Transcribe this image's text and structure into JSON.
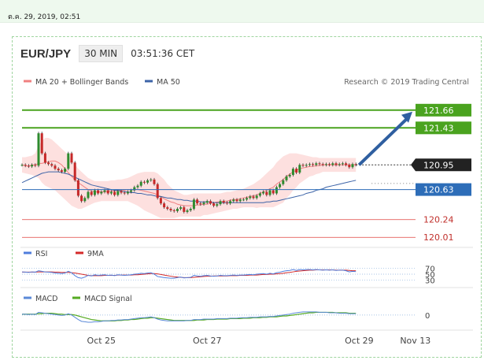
{
  "timestamp": "ต.ค. 29, 2019, 02:51",
  "header": {
    "symbol": "EUR/JPY",
    "timeframe": "30 MIN",
    "clock": "03:51:36 CET"
  },
  "colors": {
    "green_level": "#4aa31f",
    "red_level": "#e0423e",
    "blue_level": "#2d6db8",
    "ma20": "#f08080",
    "ma50": "#3d64a8",
    "bands": "#fde0df",
    "candle_up": "#2e8b2e",
    "candle_down": "#c62828",
    "arrow": "#2f5fa0",
    "rsi": "#4f7ddc",
    "rsi_ma": "#d42a2a",
    "macd": "#5b8ad8",
    "macd_signal": "#55aa22"
  },
  "chart_data": [
    {
      "type": "candlestick",
      "legend": [
        {
          "name": "MA 20 + Bollinger Bands",
          "color": "#f08080"
        },
        {
          "name": "MA 50",
          "color": "#3d64a8"
        }
      ],
      "credit": "Research © 2019 Trading Central",
      "ylim": [
        119.9,
        121.75
      ],
      "x_ticks": [
        {
          "label": "Oct 25",
          "i": 24
        },
        {
          "label": "Oct 27",
          "i": 56
        },
        {
          "label": "Oct 29",
          "i": 102
        },
        {
          "label": "Nov 13",
          "i": 119
        }
      ],
      "last_price": 120.95,
      "levels": [
        {
          "value": 121.66,
          "label": "121.66",
          "style": "resistance"
        },
        {
          "value": 121.43,
          "label": "121.43",
          "style": "resistance"
        },
        {
          "value": 120.95,
          "label": "120.95",
          "style": "last"
        },
        {
          "value": 120.63,
          "label": "120.63",
          "style": "pivot"
        },
        {
          "value": 120.24,
          "label": "120.24",
          "style": "support"
        },
        {
          "value": 120.01,
          "label": "120.01",
          "style": "support"
        }
      ],
      "forecast_arrow": {
        "from": 120.95,
        "to": 121.66
      },
      "close": [
        120.95,
        120.94,
        120.93,
        120.95,
        120.94,
        121.36,
        121.1,
        120.98,
        120.96,
        120.94,
        120.9,
        120.88,
        120.86,
        120.9,
        121.1,
        120.98,
        120.75,
        120.55,
        120.48,
        120.52,
        120.6,
        120.56,
        120.62,
        120.58,
        120.6,
        120.62,
        120.58,
        120.6,
        120.56,
        120.61,
        120.59,
        120.58,
        120.6,
        120.62,
        120.66,
        120.68,
        120.73,
        120.72,
        120.75,
        120.76,
        120.7,
        120.52,
        120.45,
        120.4,
        120.38,
        120.36,
        120.35,
        120.38,
        120.4,
        120.34,
        120.36,
        120.38,
        120.5,
        120.45,
        120.44,
        120.46,
        120.48,
        120.45,
        120.42,
        120.44,
        120.48,
        120.46,
        120.45,
        120.48,
        120.5,
        120.48,
        120.5,
        120.5,
        120.52,
        120.54,
        120.52,
        120.55,
        120.58,
        120.6,
        120.56,
        120.62,
        120.58,
        120.66,
        120.7,
        120.75,
        120.8,
        120.82,
        120.9,
        120.85,
        120.95,
        120.94,
        120.95,
        120.96,
        120.95,
        120.97,
        120.96,
        120.95,
        120.96,
        120.95,
        120.97,
        120.95,
        120.96,
        120.97,
        120.95,
        120.92,
        120.96,
        120.95
      ],
      "ma20": [
        120.95,
        120.94,
        120.93,
        120.95,
        120.95,
        120.97,
        120.97,
        120.98,
        120.99,
        121.0,
        121.0,
        120.98,
        120.95,
        120.9,
        120.85,
        120.8,
        120.76,
        120.72,
        120.69,
        120.66,
        120.63,
        120.61,
        120.6,
        120.6,
        120.6,
        120.6,
        120.61,
        120.61,
        120.61,
        120.62,
        120.62,
        120.62,
        120.63,
        120.63,
        120.63,
        120.63,
        120.62,
        120.61,
        120.6,
        120.59,
        120.58,
        120.56,
        120.54,
        120.51,
        120.49,
        120.47,
        120.46,
        120.44,
        120.43,
        120.42,
        120.42,
        120.42,
        120.42,
        120.43,
        120.43,
        120.44,
        120.44,
        120.45,
        120.46,
        120.47,
        120.47,
        120.48,
        120.48,
        120.49,
        120.5,
        120.5,
        120.51,
        120.52,
        120.53,
        120.54,
        120.55,
        120.56,
        120.58,
        120.6,
        120.62,
        120.64,
        120.66,
        120.7,
        120.73,
        120.76,
        120.8,
        120.83,
        120.86,
        120.88,
        120.9,
        120.91,
        120.92,
        120.93,
        120.93,
        120.94,
        120.94,
        120.95,
        120.95,
        120.95,
        120.95,
        120.95,
        120.95,
        120.95,
        120.95,
        120.95,
        120.95,
        120.95
      ],
      "bb_upper": [
        121.05,
        121.05,
        121.06,
        121.07,
        121.1,
        121.2,
        121.26,
        121.3,
        121.3,
        121.28,
        121.24,
        121.2,
        121.16,
        121.12,
        121.08,
        121.02,
        120.96,
        120.9,
        120.86,
        120.82,
        120.78,
        120.76,
        120.74,
        120.74,
        120.74,
        120.74,
        120.74,
        120.75,
        120.75,
        120.76,
        120.76,
        120.77,
        120.78,
        120.8,
        120.82,
        120.84,
        120.85,
        120.86,
        120.86,
        120.86,
        120.86,
        120.84,
        120.8,
        120.76,
        120.7,
        120.66,
        120.62,
        120.6,
        120.58,
        120.56,
        120.56,
        120.57,
        120.58,
        120.58,
        120.58,
        120.58,
        120.58,
        120.58,
        120.58,
        120.58,
        120.58,
        120.59,
        120.6,
        120.6,
        120.61,
        120.62,
        120.63,
        120.64,
        120.66,
        120.68,
        120.7,
        120.73,
        120.76,
        120.8,
        120.84,
        120.88,
        120.92,
        120.98,
        121.02,
        121.06,
        121.08,
        121.1,
        121.1,
        121.1,
        121.09,
        121.08,
        121.07,
        121.06,
        121.05,
        121.05,
        121.04,
        121.04,
        121.04,
        121.04,
        121.04,
        121.04,
        121.04,
        121.04,
        121.04,
        121.04,
        121.04,
        121.04
      ],
      "bb_lower": [
        120.85,
        120.84,
        120.83,
        120.82,
        120.8,
        120.78,
        120.72,
        120.68,
        120.66,
        120.64,
        120.62,
        120.58,
        120.54,
        120.5,
        120.46,
        120.42,
        120.4,
        120.38,
        120.38,
        120.4,
        120.42,
        120.44,
        120.46,
        120.47,
        120.48,
        120.48,
        120.48,
        120.48,
        120.48,
        120.48,
        120.48,
        120.48,
        120.48,
        120.46,
        120.44,
        120.42,
        120.39,
        120.36,
        120.34,
        120.32,
        120.3,
        120.28,
        120.26,
        120.26,
        120.26,
        120.26,
        120.26,
        120.27,
        120.28,
        120.28,
        120.28,
        120.28,
        120.28,
        120.28,
        120.28,
        120.3,
        120.3,
        120.31,
        120.32,
        120.33,
        120.34,
        120.35,
        120.36,
        120.37,
        120.38,
        120.38,
        120.39,
        120.4,
        120.4,
        120.4,
        120.4,
        120.39,
        120.4,
        120.4,
        120.4,
        120.4,
        120.4,
        120.42,
        120.44,
        120.46,
        120.52,
        120.56,
        120.62,
        120.66,
        120.71,
        120.74,
        120.77,
        120.8,
        120.81,
        120.83,
        120.84,
        120.86,
        120.86,
        120.86,
        120.86,
        120.86,
        120.86,
        120.86,
        120.86,
        120.86,
        120.86,
        120.86
      ],
      "ma50": [
        120.72,
        120.74,
        120.76,
        120.78,
        120.8,
        120.82,
        120.84,
        120.85,
        120.86,
        120.86,
        120.86,
        120.86,
        120.85,
        120.84,
        120.83,
        120.81,
        120.79,
        120.77,
        120.75,
        120.73,
        120.71,
        120.69,
        120.68,
        120.67,
        120.66,
        120.65,
        120.64,
        120.63,
        120.62,
        120.62,
        120.61,
        120.6,
        120.6,
        120.59,
        120.59,
        120.58,
        120.58,
        120.57,
        120.56,
        120.56,
        120.55,
        120.54,
        120.54,
        120.53,
        120.52,
        120.52,
        120.51,
        120.5,
        120.5,
        120.49,
        120.49,
        120.48,
        120.48,
        120.48,
        120.47,
        120.47,
        120.47,
        120.47,
        120.46,
        120.46,
        120.46,
        120.46,
        120.46,
        120.46,
        120.46,
        120.46,
        120.46,
        120.46,
        120.46,
        120.46,
        120.46,
        120.46,
        120.46,
        120.46,
        120.47,
        120.47,
        120.48,
        120.48,
        120.49,
        120.5,
        120.51,
        120.52,
        120.53,
        120.54,
        120.55,
        120.56,
        120.58,
        120.59,
        120.6,
        120.62,
        120.63,
        120.64,
        120.66,
        120.67,
        120.68,
        120.69,
        120.7,
        120.71,
        120.72,
        120.73,
        120.74,
        120.75
      ]
    },
    {
      "type": "line",
      "legend": [
        {
          "name": "RSI",
          "color": "#4f7ddc"
        },
        {
          "name": "9MA",
          "color": "#d42a2a"
        }
      ],
      "y_ticks": [
        "70",
        "50",
        "30"
      ],
      "ylim": [
        20,
        80
      ],
      "rsi": [
        58,
        57,
        56,
        58,
        57,
        62,
        60,
        58,
        57,
        56,
        54,
        53,
        52,
        54,
        60,
        55,
        45,
        38,
        36,
        40,
        46,
        44,
        48,
        46,
        47,
        48,
        46,
        47,
        45,
        48,
        47,
        46,
        47,
        48,
        50,
        51,
        53,
        52,
        54,
        55,
        50,
        42,
        40,
        38,
        37,
        36,
        36,
        38,
        40,
        37,
        38,
        39,
        46,
        44,
        43,
        45,
        46,
        44,
        43,
        44,
        46,
        45,
        45,
        46,
        47,
        46,
        47,
        47,
        48,
        49,
        48,
        50,
        51,
        52,
        50,
        53,
        51,
        55,
        57,
        60,
        62,
        63,
        66,
        63,
        66,
        65,
        66,
        66,
        65,
        66,
        65,
        64,
        65,
        64,
        65,
        63,
        64,
        64,
        62,
        58,
        60,
        59
      ],
      "rsi_ma": [
        57,
        57,
        57,
        57,
        57,
        58,
        58,
        58,
        58,
        58,
        57,
        57,
        56,
        56,
        56,
        55,
        54,
        52,
        50,
        48,
        46,
        45,
        45,
        45,
        45,
        46,
        46,
        46,
        46,
        47,
        47,
        47,
        47,
        47,
        48,
        48,
        49,
        50,
        51,
        52,
        52,
        51,
        49,
        47,
        45,
        43,
        41,
        40,
        39,
        38,
        38,
        38,
        39,
        40,
        41,
        42,
        43,
        43,
        44,
        44,
        44,
        44,
        44,
        45,
        45,
        45,
        46,
        46,
        46,
        47,
        47,
        47,
        48,
        49,
        49,
        50,
        50,
        51,
        52,
        53,
        55,
        56,
        58,
        60,
        61,
        62,
        63,
        64,
        64,
        65,
        65,
        65,
        65,
        65,
        65,
        64,
        64,
        64,
        64,
        63,
        62,
        62
      ]
    },
    {
      "type": "line",
      "legend": [
        {
          "name": "MACD",
          "color": "#5b8ad8"
        },
        {
          "name": "MACD Signal",
          "color": "#55aa22"
        }
      ],
      "y_ticks": [
        "0"
      ],
      "ylim": [
        -0.3,
        0.12
      ],
      "macd": [
        0.02,
        0.02,
        0.01,
        0.02,
        0.01,
        0.06,
        0.05,
        0.04,
        0.03,
        0.02,
        0.01,
        0.0,
        -0.01,
        0.0,
        0.03,
        0.0,
        -0.05,
        -0.1,
        -0.14,
        -0.15,
        -0.16,
        -0.16,
        -0.15,
        -0.15,
        -0.14,
        -0.13,
        -0.13,
        -0.12,
        -0.12,
        -0.11,
        -0.11,
        -0.1,
        -0.1,
        -0.09,
        -0.08,
        -0.07,
        -0.06,
        -0.06,
        -0.05,
        -0.04,
        -0.06,
        -0.09,
        -0.11,
        -0.12,
        -0.13,
        -0.13,
        -0.13,
        -0.13,
        -0.13,
        -0.13,
        -0.12,
        -0.12,
        -0.1,
        -0.1,
        -0.1,
        -0.09,
        -0.09,
        -0.09,
        -0.09,
        -0.08,
        -0.08,
        -0.08,
        -0.08,
        -0.07,
        -0.07,
        -0.07,
        -0.06,
        -0.06,
        -0.06,
        -0.05,
        -0.05,
        -0.05,
        -0.04,
        -0.04,
        -0.04,
        -0.03,
        -0.03,
        -0.02,
        -0.01,
        0.0,
        0.01,
        0.02,
        0.04,
        0.05,
        0.06,
        0.07,
        0.07,
        0.07,
        0.07,
        0.07,
        0.06,
        0.06,
        0.06,
        0.05,
        0.05,
        0.05,
        0.04,
        0.04,
        0.04,
        0.03,
        0.03,
        0.03
      ],
      "macd_signal": [
        0.02,
        0.02,
        0.02,
        0.02,
        0.02,
        0.03,
        0.03,
        0.04,
        0.04,
        0.04,
        0.03,
        0.02,
        0.02,
        0.01,
        0.01,
        0.01,
        0.0,
        -0.02,
        -0.04,
        -0.06,
        -0.08,
        -0.1,
        -0.11,
        -0.12,
        -0.13,
        -0.13,
        -0.13,
        -0.13,
        -0.13,
        -0.12,
        -0.12,
        -0.11,
        -0.11,
        -0.1,
        -0.1,
        -0.09,
        -0.08,
        -0.07,
        -0.07,
        -0.06,
        -0.06,
        -0.07,
        -0.08,
        -0.09,
        -0.1,
        -0.11,
        -0.12,
        -0.12,
        -0.12,
        -0.12,
        -0.12,
        -0.12,
        -0.12,
        -0.11,
        -0.11,
        -0.11,
        -0.1,
        -0.1,
        -0.1,
        -0.09,
        -0.09,
        -0.09,
        -0.09,
        -0.08,
        -0.08,
        -0.08,
        -0.08,
        -0.07,
        -0.07,
        -0.07,
        -0.06,
        -0.06,
        -0.06,
        -0.05,
        -0.05,
        -0.04,
        -0.04,
        -0.04,
        -0.03,
        -0.02,
        -0.02,
        -0.01,
        0.0,
        0.01,
        0.02,
        0.03,
        0.04,
        0.05,
        0.05,
        0.06,
        0.06,
        0.06,
        0.06,
        0.06,
        0.06,
        0.05,
        0.05,
        0.05,
        0.05,
        0.04,
        0.04,
        0.04
      ]
    }
  ]
}
